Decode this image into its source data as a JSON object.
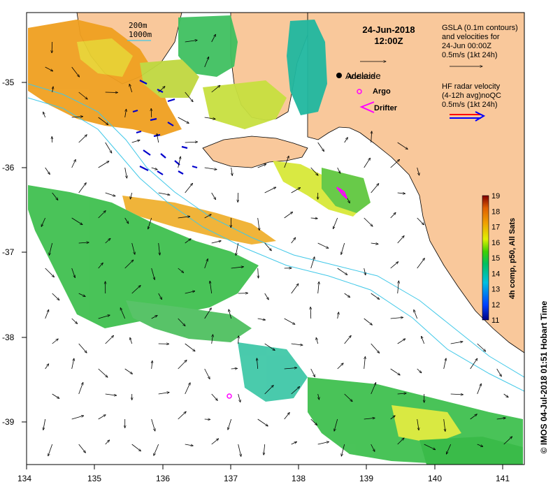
{
  "map": {
    "date": "24-Jun-2018",
    "time": "12:00Z",
    "lon_ticks": [
      "134",
      "135",
      "136",
      "137",
      "138",
      "139",
      "140",
      "141"
    ],
    "lat_ticks": [
      "-35",
      "-36",
      "-37",
      "-38",
      "-39"
    ],
    "city": {
      "name": "Adelaide",
      "name_overlap": "Adelaide"
    }
  },
  "bathymetry_legend": {
    "contour_1": "200m",
    "contour_2": "1000m",
    "contour_color": "#40c8e8"
  },
  "gsla_legend": {
    "line1": "GSLA (0.1m contours)",
    "line2": "and velocities for",
    "line3": "24-Jun 00:00Z",
    "line4": "0.5m/s (1kt 24h)"
  },
  "hf_radar_legend": {
    "line1": "HF radar velocity",
    "line2": "(4-12h avg)noQC",
    "line3": "0.5m/s (1kt 24h)",
    "color_a": "#ff0000",
    "color_b": "#0000ff"
  },
  "markers": {
    "argo_label": "Argo",
    "drifter_label": "Drifter",
    "argo_color": "#ff00ff",
    "drifter_color": "#ff00ff"
  },
  "colorbar": {
    "label": "4h comp, p50, All Sats",
    "ticks": [
      "19",
      "18",
      "17",
      "16",
      "15",
      "14",
      "13",
      "12",
      "11"
    ],
    "min": 11,
    "max": 19
  },
  "credit": "© IMOS 04-Jul-2018 01:51 Hobart Time",
  "colors": {
    "land": "#f9c89b",
    "sea": "#ffffff"
  }
}
